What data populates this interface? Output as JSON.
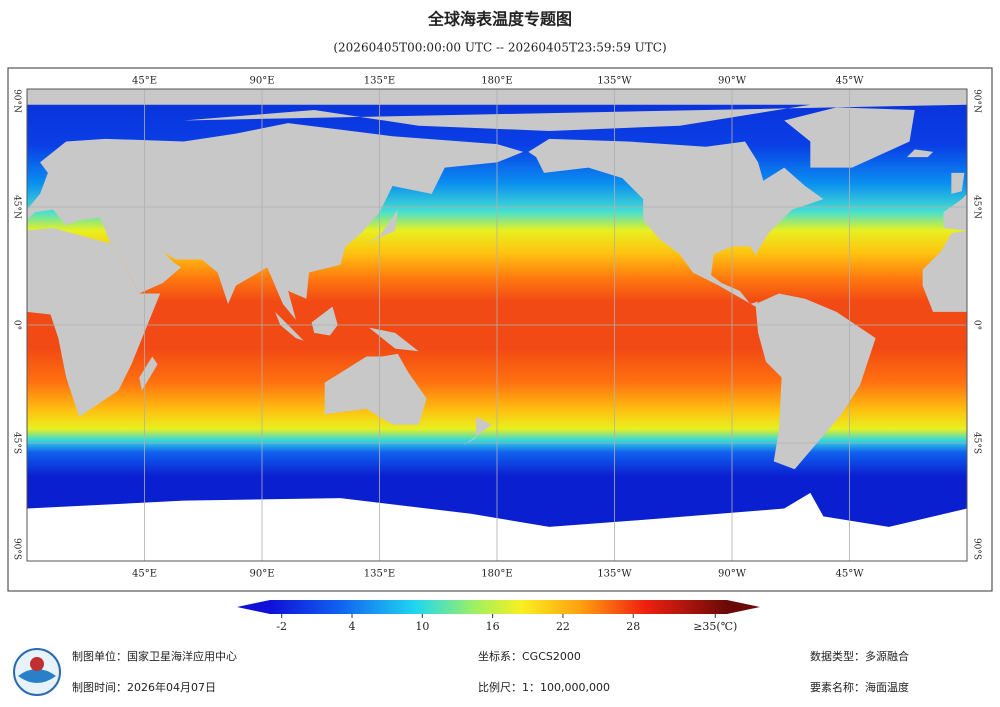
{
  "header": {
    "title": "全球海表温度专题图",
    "subtitle": "(20260405T00:00:00 UTC -- 20260405T23:59:59 UTC)"
  },
  "map": {
    "lon_ticks": [
      {
        "value": 45,
        "label": "45°E"
      },
      {
        "value": 90,
        "label": "90°E"
      },
      {
        "value": 135,
        "label": "135°E"
      },
      {
        "value": 180,
        "label": "180°E"
      },
      {
        "value": 225,
        "label": "135°W"
      },
      {
        "value": 270,
        "label": "90°W"
      },
      {
        "value": 315,
        "label": "45°W"
      }
    ],
    "lat_ticks": [
      {
        "value": 90,
        "label": "90°N"
      },
      {
        "value": 45,
        "label": "45°N"
      },
      {
        "value": 0,
        "label": "0°"
      },
      {
        "value": -45,
        "label": "45°S"
      },
      {
        "value": -90,
        "label": "90°S"
      }
    ],
    "lonlim": [
      0,
      360
    ],
    "latlim": [
      -90,
      90
    ]
  },
  "colorbar": {
    "lim": [
      -3,
      36
    ],
    "ticks": [
      -2,
      4,
      10,
      16,
      22,
      28,
      {
        "value": 35,
        "label": "≥35(℃)"
      }
    ]
  },
  "footer": {
    "left": [
      "制图单位：国家卫星海洋应用中心",
      "制图时间：2026年04月07日"
    ],
    "middle": [
      "坐标系：CGCS2000",
      "比例尺：1：100,000,000"
    ],
    "right": [
      "数据类型：多源融合",
      "要素名称：海面温度"
    ]
  }
}
